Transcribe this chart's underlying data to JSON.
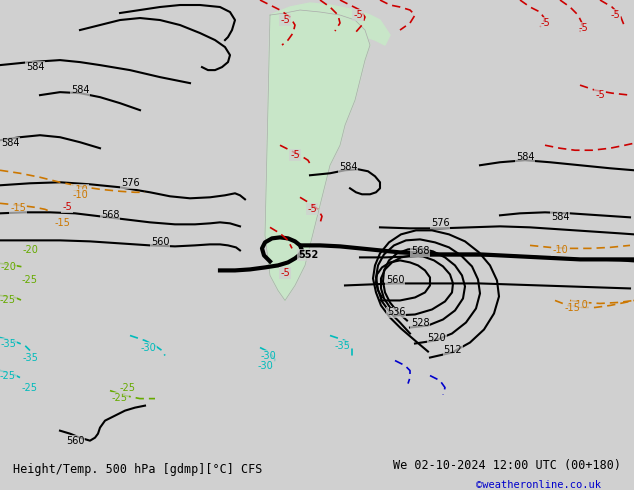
{
  "title_left": "Height/Temp. 500 hPa [gdmp][°C] CFS",
  "title_right": "We 02-10-2024 12:00 UTC (00+180)",
  "credit": "©weatheronline.co.uk",
  "background_color": "#d0d0d0",
  "land_color": "#c8e6c8",
  "text_color_black": "#000000",
  "text_color_red": "#cc0000",
  "text_color_orange": "#cc7700",
  "text_color_green": "#66aa00",
  "text_color_cyan": "#00bbbb",
  "text_color_blue": "#0000cc",
  "figsize": [
    6.34,
    4.9
  ],
  "dpi": 100
}
